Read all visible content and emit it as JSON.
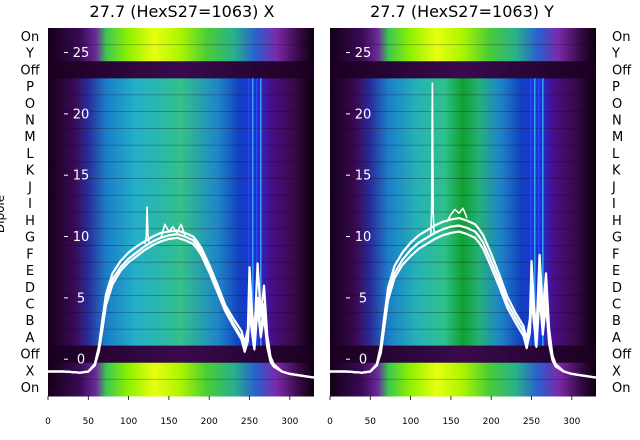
{
  "chart_data": [
    {
      "type": "heatmap",
      "title": "27.7 (HexS27=1063) X",
      "ylabel": "Dipole",
      "row_labels": [
        "On",
        "Y",
        "Off",
        "P",
        "O",
        "N",
        "M",
        "L",
        "K",
        "J",
        "I",
        "H",
        "G",
        "F",
        "E",
        "D",
        "C",
        "B",
        "A",
        "Off",
        "X",
        "On"
      ],
      "xlim": [
        0,
        330
      ],
      "xticks": [
        0,
        50,
        100,
        150,
        200,
        250,
        300
      ],
      "overlay_ylim": [
        -3,
        27
      ],
      "overlay_yticks": [
        0,
        5,
        10,
        15,
        20,
        25
      ],
      "colormap": "gnuplot2-like (black-purple-blue-cyan-green-yellow)",
      "traces": [
        {
          "x": [
            0,
            20,
            40,
            50,
            58,
            63,
            67,
            72,
            80,
            90,
            100,
            110,
            120,
            130,
            140,
            150,
            160,
            170,
            180,
            185,
            190,
            200,
            210,
            220,
            230,
            240,
            244,
            248,
            250,
            253,
            256,
            260,
            264,
            268,
            272,
            276,
            280,
            290,
            300,
            310,
            330
          ],
          "y": [
            -1.0,
            -1.0,
            -1.1,
            -1.0,
            -0.5,
            0.8,
            2.5,
            4.8,
            6.5,
            7.5,
            8.2,
            8.7,
            9.2,
            9.6,
            9.9,
            10.1,
            10.2,
            10.0,
            9.7,
            9.3,
            8.8,
            7.4,
            5.8,
            4.1,
            2.9,
            1.8,
            0.8,
            2.0,
            5.0,
            3.0,
            1.0,
            5.0,
            2.0,
            4.5,
            1.5,
            0.0,
            -0.5,
            -1.0,
            -1.2,
            -1.3,
            -1.5
          ]
        },
        {
          "x": [
            0,
            20,
            40,
            50,
            58,
            63,
            67,
            72,
            80,
            90,
            100,
            110,
            120,
            130,
            140,
            150,
            160,
            170,
            180,
            185,
            190,
            200,
            210,
            220,
            230,
            240,
            244,
            248,
            250,
            253,
            256,
            260,
            264,
            268,
            272,
            276,
            280,
            290,
            300,
            310,
            330
          ],
          "y": [
            -1.0,
            -1.0,
            -1.1,
            -1.0,
            -0.4,
            1.0,
            3.0,
            5.3,
            7.0,
            8.0,
            8.7,
            9.2,
            9.6,
            10.0,
            10.3,
            10.4,
            10.5,
            10.3,
            10.0,
            9.6,
            9.1,
            7.7,
            6.1,
            4.4,
            3.3,
            2.3,
            1.3,
            2.5,
            7.5,
            4.0,
            2.0,
            7.8,
            3.5,
            6.0,
            2.0,
            0.2,
            -0.4,
            -1.0,
            -1.2,
            -1.3,
            -1.5
          ]
        },
        {
          "x": [
            0,
            20,
            40,
            50,
            58,
            63,
            67,
            72,
            80,
            90,
            100,
            110,
            120,
            130,
            140,
            150,
            160,
            170,
            180,
            185,
            190,
            200,
            210,
            220,
            230,
            240,
            244,
            248,
            250,
            253,
            256,
            260,
            264,
            268,
            272,
            276,
            280,
            290,
            300,
            310,
            330
          ],
          "y": [
            -1.0,
            -1.0,
            -1.1,
            -1.0,
            -0.5,
            0.6,
            2.2,
            4.4,
            6.1,
            7.2,
            7.9,
            8.4,
            8.9,
            9.3,
            9.6,
            9.8,
            9.9,
            9.7,
            9.4,
            9.0,
            8.5,
            7.1,
            5.5,
            3.9,
            2.7,
            1.6,
            0.6,
            1.5,
            4.0,
            2.2,
            0.8,
            4.2,
            1.8,
            3.5,
            1.0,
            -0.2,
            -0.6,
            -1.0,
            -1.2,
            -1.3,
            -1.5
          ]
        },
        {
          "x": [
            120,
            121,
            122,
            123,
            124,
            125,
            126,
            127,
            128
          ],
          "y": [
            9.4,
            9.6,
            10.0,
            12.4,
            10.1,
            9.6,
            9.4,
            9.5,
            9.5
          ]
        },
        {
          "x": [
            140,
            145,
            150,
            155,
            160,
            165,
            170
          ],
          "y": [
            9.9,
            11.0,
            10.4,
            10.8,
            10.3,
            11.0,
            10.1
          ]
        }
      ]
    },
    {
      "type": "heatmap",
      "title": "27.7 (HexS27=1063) Y",
      "row_labels": [
        "On",
        "Y",
        "Off",
        "P",
        "O",
        "N",
        "M",
        "L",
        "K",
        "J",
        "I",
        "H",
        "G",
        "F",
        "E",
        "D",
        "C",
        "B",
        "A",
        "Off",
        "X",
        "On"
      ],
      "xlim": [
        0,
        330
      ],
      "xticks": [
        0,
        50,
        100,
        150,
        200,
        250,
        300
      ],
      "overlay_ylim": [
        -3,
        27
      ],
      "overlay_yticks": [
        0,
        5,
        10,
        15,
        20,
        25
      ],
      "colormap": "gnuplot2-like (black-purple-blue-cyan-green-yellow)",
      "traces": [
        {
          "x": [
            0,
            20,
            40,
            50,
            58,
            63,
            67,
            72,
            80,
            90,
            100,
            110,
            120,
            130,
            140,
            150,
            160,
            170,
            180,
            185,
            190,
            200,
            210,
            220,
            230,
            240,
            244,
            248,
            250,
            253,
            256,
            260,
            264,
            268,
            272,
            276,
            280,
            290,
            300,
            310,
            330
          ],
          "y": [
            -1.0,
            -1.0,
            -1.1,
            -1.0,
            -0.5,
            0.8,
            2.8,
            5.2,
            7.0,
            8.1,
            8.9,
            9.5,
            9.9,
            10.3,
            10.6,
            10.8,
            10.9,
            10.7,
            10.4,
            10.0,
            9.5,
            8.0,
            6.4,
            4.6,
            3.4,
            2.3,
            1.2,
            2.8,
            6.0,
            3.5,
            1.5,
            6.5,
            2.5,
            5.5,
            1.8,
            0.1,
            -0.5,
            -1.0,
            -1.2,
            -1.3,
            -1.5
          ]
        },
        {
          "x": [
            0,
            20,
            40,
            50,
            58,
            63,
            67,
            72,
            80,
            90,
            100,
            110,
            120,
            130,
            140,
            150,
            160,
            170,
            180,
            185,
            190,
            200,
            210,
            220,
            230,
            240,
            244,
            248,
            250,
            253,
            256,
            260,
            264,
            268,
            272,
            276,
            280,
            290,
            300,
            310,
            330
          ],
          "y": [
            -1.0,
            -1.0,
            -1.1,
            -1.0,
            -0.4,
            1.1,
            3.3,
            5.8,
            7.6,
            8.7,
            9.5,
            10.1,
            10.5,
            10.9,
            11.2,
            11.4,
            11.5,
            11.3,
            11.0,
            10.6,
            10.1,
            8.6,
            6.9,
            5.1,
            3.8,
            2.7,
            1.6,
            3.3,
            8.0,
            4.5,
            2.2,
            8.5,
            3.8,
            7.0,
            2.4,
            0.3,
            -0.4,
            -1.0,
            -1.2,
            -1.3,
            -1.5
          ]
        },
        {
          "x": [
            0,
            20,
            40,
            50,
            58,
            63,
            67,
            72,
            80,
            90,
            100,
            110,
            120,
            130,
            140,
            150,
            160,
            170,
            180,
            185,
            190,
            200,
            210,
            220,
            230,
            240,
            244,
            248,
            250,
            253,
            256,
            260,
            264,
            268,
            272,
            276,
            280,
            290,
            300,
            310,
            330
          ],
          "y": [
            -1.0,
            -1.0,
            -1.1,
            -1.0,
            -0.5,
            0.5,
            2.4,
            4.8,
            6.6,
            7.7,
            8.4,
            9.0,
            9.4,
            9.8,
            10.1,
            10.3,
            10.4,
            10.2,
            9.9,
            9.5,
            9.0,
            7.5,
            5.9,
            4.2,
            3.0,
            1.9,
            0.9,
            2.2,
            5.0,
            3.0,
            1.0,
            5.2,
            2.0,
            4.5,
            1.2,
            -0.1,
            -0.6,
            -1.0,
            -1.2,
            -1.3,
            -1.5
          ]
        },
        {
          "x": [
            124,
            125,
            126,
            127,
            128,
            129,
            130
          ],
          "y": [
            10.0,
            10.2,
            12.0,
            22.5,
            12.0,
            10.4,
            10.3
          ]
        },
        {
          "x": [
            145,
            150,
            155,
            160,
            165,
            170
          ],
          "y": [
            11.2,
            11.8,
            12.2,
            11.9,
            12.3,
            11.5
          ]
        }
      ]
    }
  ]
}
